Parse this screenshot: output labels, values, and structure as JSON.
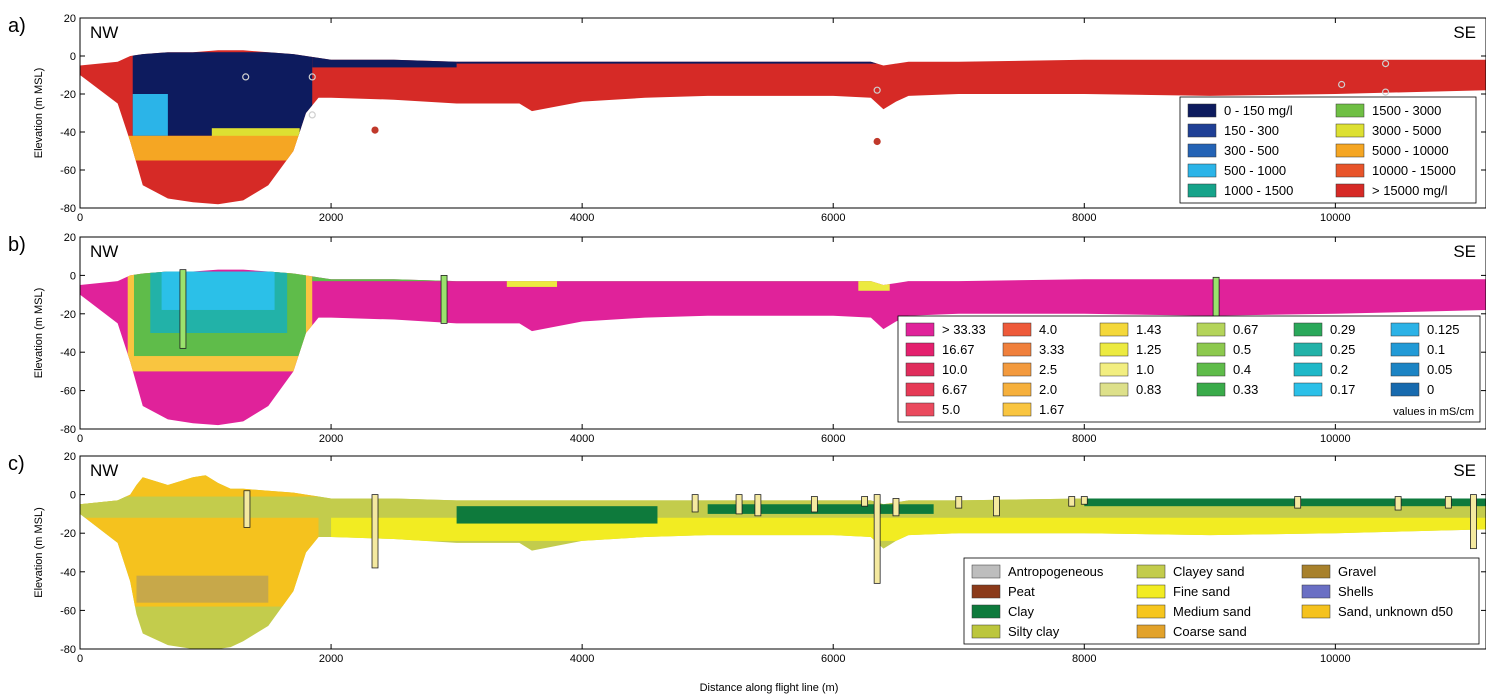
{
  "figure": {
    "xlabel": "Distance along flight line (m)"
  },
  "colors": {
    "zeroLine": "#ffffff",
    "borehole_fill": "#f4e9a0",
    "borehole_fill_b": "#9be26d"
  },
  "chart_data": [
    {
      "type": "heatmap",
      "panel_label": "a)",
      "left_label": "NW",
      "right_label": "SE",
      "ylabel": "Elevation (m MSL)",
      "xlim": [
        0,
        11200
      ],
      "ylim": [
        -80,
        20
      ],
      "x_ticks": [
        0,
        2000,
        4000,
        6000,
        8000,
        10000
      ],
      "y_ticks": [
        20,
        0,
        -20,
        -40,
        -60,
        -80
      ],
      "profile": {
        "x": [
          0,
          300,
          400,
          500,
          700,
          900,
          1100,
          1300,
          1500,
          1700,
          1800,
          1900,
          2000,
          2500,
          3000,
          3500,
          3600,
          4000,
          4500,
          5000,
          5500,
          6000,
          6300,
          6400,
          6500,
          6600,
          7000,
          8000,
          9000,
          10000,
          11200
        ],
        "top": [
          -5,
          -3,
          0,
          1,
          2,
          2,
          3,
          3,
          2,
          1,
          0,
          -1,
          -2,
          -2,
          -3,
          -3,
          -3,
          -3,
          -3,
          -3,
          -3,
          -3,
          -3,
          -5,
          -4,
          -3,
          -3,
          -2,
          -2,
          -2,
          -2
        ],
        "bottom": [
          -10,
          -25,
          -45,
          -68,
          -75,
          -77,
          -78,
          -76,
          -68,
          -50,
          -30,
          -22,
          -22,
          -23,
          -25,
          -25,
          -29,
          -24,
          -22,
          -21,
          -21,
          -21,
          -22,
          -28,
          -24,
          -21,
          -20,
          -20,
          -21,
          -20,
          -18
        ]
      },
      "legend": {
        "ncols": 2,
        "unit": "",
        "items": [
          {
            "label": "0 - 150 mg/l",
            "color": "#0d1b5e"
          },
          {
            "label": "150 - 300",
            "color": "#1f3f95"
          },
          {
            "label": "300 - 500",
            "color": "#2463b5"
          },
          {
            "label": "500 - 1000",
            "color": "#2bb4e8"
          },
          {
            "label": "1000 - 1500",
            "color": "#16a38a"
          },
          {
            "label": "1500 - 3000",
            "color": "#6fbf44"
          },
          {
            "label": "3000 - 5000",
            "color": "#dde032"
          },
          {
            "label": "5000 - 10000",
            "color": "#f5a623"
          },
          {
            "label": "10000 - 15000",
            "color": "#e8542a"
          },
          {
            "label": "> 15000 mg/l",
            "color": "#d62a26"
          }
        ]
      },
      "zones": [
        {
          "x0": 420,
          "x1": 1850,
          "ytop": 2,
          "ybot": -42,
          "color": "#0d1b5e"
        },
        {
          "x0": 1850,
          "x1": 3000,
          "ytop": 0,
          "ybot": -6,
          "color": "#0d1b5e"
        },
        {
          "x0": 3000,
          "x1": 6500,
          "ytop": 0,
          "ybot": -4,
          "color": "#0d1b5e"
        },
        {
          "x0": 1050,
          "x1": 1750,
          "ytop": -38,
          "ybot": -45,
          "color": "#dde032"
        },
        {
          "x0": 420,
          "x1": 700,
          "ytop": -20,
          "ybot": -42,
          "color": "#2bb4e8"
        },
        {
          "x0": 380,
          "x1": 1800,
          "ytop": -42,
          "ybot": -55,
          "color": "#f5a623"
        }
      ],
      "points": [
        {
          "x": 2350,
          "y": -39,
          "color": "#c0392b"
        },
        {
          "x": 6350,
          "y": -45,
          "color": "#c0392b"
        },
        {
          "x": 1320,
          "y": -11,
          "color": "#cfcfcf"
        },
        {
          "x": 1850,
          "y": -11,
          "color": "#cfcfcf"
        },
        {
          "x": 1850,
          "y": -31,
          "color": "#cfcfcf"
        },
        {
          "x": 6350,
          "y": -18,
          "color": "#cfcfcf"
        },
        {
          "x": 10050,
          "y": -15,
          "color": "#cfcfcf"
        },
        {
          "x": 10400,
          "y": -4,
          "color": "#cfcfcf"
        },
        {
          "x": 10400,
          "y": -19,
          "color": "#cfcfcf"
        }
      ],
      "boreholes": []
    },
    {
      "type": "heatmap",
      "panel_label": "b)",
      "left_label": "NW",
      "right_label": "SE",
      "ylabel": "Elevation (m MSL)",
      "xlim": [
        0,
        11200
      ],
      "ylim": [
        -80,
        20
      ],
      "x_ticks": [
        0,
        2000,
        4000,
        6000,
        8000,
        10000
      ],
      "y_ticks": [
        20,
        0,
        -20,
        -40,
        -60,
        -80
      ],
      "profile": {
        "x": [
          0,
          300,
          400,
          500,
          700,
          900,
          1100,
          1300,
          1500,
          1700,
          1800,
          1900,
          2000,
          2500,
          3000,
          3500,
          3600,
          4000,
          4500,
          5000,
          5500,
          6000,
          6300,
          6400,
          6500,
          6600,
          7000,
          8000,
          9000,
          10000,
          11200
        ],
        "top": [
          -5,
          -3,
          0,
          1,
          2,
          2,
          3,
          3,
          2,
          1,
          0,
          -1,
          -2,
          -2,
          -3,
          -3,
          -3,
          -3,
          -3,
          -3,
          -3,
          -3,
          -3,
          -5,
          -4,
          -3,
          -3,
          -2,
          -2,
          -2,
          -2
        ],
        "bottom": [
          -10,
          -25,
          -45,
          -68,
          -75,
          -77,
          -78,
          -76,
          -68,
          -50,
          -30,
          -22,
          -22,
          -23,
          -25,
          -25,
          -29,
          -24,
          -22,
          -21,
          -21,
          -21,
          -22,
          -28,
          -24,
          -21,
          -20,
          -20,
          -21,
          -20,
          -18
        ]
      },
      "legend": {
        "ncols": 6,
        "unit": "values in mS/cm",
        "items": [
          {
            "label": "> 33.33",
            "color": "#e0229a"
          },
          {
            "label": "16.67",
            "color": "#e4206e"
          },
          {
            "label": "10.0",
            "color": "#e02d5c"
          },
          {
            "label": "6.67",
            "color": "#e63a56"
          },
          {
            "label": "5.0",
            "color": "#ea4a5e"
          },
          {
            "label": "4.0",
            "color": "#ee5a3a"
          },
          {
            "label": "3.33",
            "color": "#f0803c"
          },
          {
            "label": "2.5",
            "color": "#f39a3e"
          },
          {
            "label": "2.0",
            "color": "#f6b03c"
          },
          {
            "label": "1.67",
            "color": "#f9c540"
          },
          {
            "label": "1.43",
            "color": "#f4d83a"
          },
          {
            "label": "1.25",
            "color": "#ecea40"
          },
          {
            "label": "1.0",
            "color": "#f2ee80"
          },
          {
            "label": "0.83",
            "color": "#dde08a"
          },
          {
            "label": "",
            "color": ""
          },
          {
            "label": "0.67",
            "color": "#b4d45a"
          },
          {
            "label": "0.5",
            "color": "#8dc94e"
          },
          {
            "label": "0.4",
            "color": "#5fbc4a"
          },
          {
            "label": "0.33",
            "color": "#3aab4a"
          },
          {
            "label": "",
            "color": ""
          },
          {
            "label": "0.29",
            "color": "#2aa85a"
          },
          {
            "label": "0.25",
            "color": "#22b2a8"
          },
          {
            "label": "0.2",
            "color": "#1fb8c8"
          },
          {
            "label": "0.17",
            "color": "#2bc0e8"
          },
          {
            "label": "",
            "color": ""
          },
          {
            "label": "0.125",
            "color": "#2cb2e6"
          },
          {
            "label": "0.1",
            "color": "#229ad6"
          },
          {
            "label": "0.05",
            "color": "#1c84c4"
          },
          {
            "label": "0",
            "color": "#176aae"
          },
          {
            "label": "",
            "color": ""
          }
        ]
      },
      "zones": [
        {
          "x0": 380,
          "x1": 1850,
          "ytop": 2,
          "ybot": -50,
          "color": "#f9c540"
        },
        {
          "x0": 430,
          "x1": 1800,
          "ytop": 2,
          "ybot": -42,
          "color": "#5fbc4a"
        },
        {
          "x0": 560,
          "x1": 1650,
          "ytop": 2,
          "ybot": -30,
          "color": "#22b2a8"
        },
        {
          "x0": 650,
          "x1": 1550,
          "ytop": 2,
          "ybot": -18,
          "color": "#2bc0e8"
        },
        {
          "x0": 1850,
          "x1": 6600,
          "ytop": 0,
          "ybot": -3,
          "color": "#5fbc4a"
        },
        {
          "x0": 3400,
          "x1": 3800,
          "ytop": 0,
          "ybot": -6,
          "color": "#ecea40"
        },
        {
          "x0": 6200,
          "x1": 6450,
          "ytop": 0,
          "ybot": -8,
          "color": "#ecea40"
        }
      ],
      "points": [],
      "boreholes": [
        {
          "x": 820,
          "ytop": 3,
          "ybot": -38
        },
        {
          "x": 2900,
          "ytop": 0,
          "ybot": -25
        },
        {
          "x": 9050,
          "ytop": -1,
          "ybot": -38
        }
      ]
    },
    {
      "type": "heatmap",
      "panel_label": "c)",
      "left_label": "NW",
      "right_label": "SE",
      "ylabel": "Elevation (m MSL)",
      "xlim": [
        0,
        11200
      ],
      "ylim": [
        -80,
        20
      ],
      "x_ticks": [
        0,
        2000,
        4000,
        6000,
        8000,
        10000
      ],
      "y_ticks": [
        20,
        0,
        -20,
        -40,
        -60,
        -80
      ],
      "profile": {
        "x": [
          0,
          300,
          400,
          450,
          500,
          700,
          900,
          1000,
          1100,
          1200,
          1300,
          1500,
          1700,
          1800,
          1900,
          2000,
          2500,
          3000,
          3500,
          3600,
          4000,
          4500,
          5000,
          5500,
          6000,
          6300,
          6400,
          6500,
          6600,
          7000,
          8000,
          9000,
          10000,
          11200
        ],
        "top": [
          -5,
          -3,
          0,
          5,
          9,
          5,
          9,
          10,
          6,
          3,
          3,
          2,
          1,
          0,
          -1,
          -2,
          -2,
          -3,
          -3,
          -3,
          -3,
          -3,
          -3,
          -3,
          -3,
          -3,
          -5,
          -4,
          -3,
          -3,
          -2,
          -2,
          -2,
          -2
        ],
        "bottom": [
          -10,
          -25,
          -45,
          -62,
          -72,
          -78,
          -80,
          -80,
          -80,
          -79,
          -76,
          -68,
          -50,
          -30,
          -22,
          -22,
          -23,
          -25,
          -25,
          -29,
          -24,
          -22,
          -21,
          -21,
          -21,
          -22,
          -28,
          -24,
          -21,
          -20,
          -20,
          -21,
          -20,
          -18
        ]
      },
      "legend": {
        "ncols": 3,
        "unit": "",
        "items": [
          {
            "label": "Antropogeneous",
            "color": "#bdbdbd"
          },
          {
            "label": "Peat",
            "color": "#8b3a1a"
          },
          {
            "label": "Clay",
            "color": "#0e7a3c"
          },
          {
            "label": "Silty clay",
            "color": "#bcc63c"
          },
          {
            "label": "Clayey sand",
            "color": "#c3cc4c"
          },
          {
            "label": "Fine sand",
            "color": "#f2ec22"
          },
          {
            "label": "Medium sand",
            "color": "#f6c61e"
          },
          {
            "label": "Coarse sand",
            "color": "#e2a22a"
          },
          {
            "label": "Gravel",
            "color": "#a8812c"
          },
          {
            "label": "Shells",
            "color": "#6a6fc4"
          },
          {
            "label": "Sand, unknown d50",
            "color": "#f5c21e"
          }
        ]
      },
      "zones": [
        {
          "x0": 0,
          "x1": 1900,
          "ytop": 10,
          "ybot": -58,
          "color": "#f5c21e"
        },
        {
          "x0": 450,
          "x1": 1500,
          "ytop": -42,
          "ybot": -56,
          "color": "#c7a84a"
        },
        {
          "x0": 0,
          "x1": 11200,
          "ytop": -1,
          "ybot": -12,
          "color": "#c3cc4c"
        },
        {
          "x0": 2000,
          "x1": 11200,
          "ytop": -12,
          "ybot": -24,
          "color": "#f2ec22"
        },
        {
          "x0": 3000,
          "x1": 4600,
          "ytop": -6,
          "ybot": -15,
          "color": "#0e7a3c"
        },
        {
          "x0": 5000,
          "x1": 6800,
          "ytop": -5,
          "ybot": -10,
          "color": "#0e7a3c"
        },
        {
          "x0": 8000,
          "x1": 11200,
          "ytop": -2,
          "ybot": -6,
          "color": "#0e7a3c"
        }
      ],
      "points": [],
      "boreholes": [
        {
          "x": 1330,
          "ytop": 2,
          "ybot": -17
        },
        {
          "x": 2350,
          "ytop": 0,
          "ybot": -38
        },
        {
          "x": 4900,
          "ytop": 0,
          "ybot": -9
        },
        {
          "x": 5250,
          "ytop": 0,
          "ybot": -10
        },
        {
          "x": 5400,
          "ytop": 0,
          "ybot": -11
        },
        {
          "x": 5850,
          "ytop": -1,
          "ybot": -9
        },
        {
          "x": 6250,
          "ytop": -1,
          "ybot": -6
        },
        {
          "x": 6350,
          "ytop": 0,
          "ybot": -46
        },
        {
          "x": 6500,
          "ytop": -2,
          "ybot": -11
        },
        {
          "x": 7000,
          "ytop": -1,
          "ybot": -7
        },
        {
          "x": 7300,
          "ytop": -1,
          "ybot": -11
        },
        {
          "x": 7900,
          "ytop": -1,
          "ybot": -6
        },
        {
          "x": 8000,
          "ytop": -1,
          "ybot": -5
        },
        {
          "x": 9700,
          "ytop": -1,
          "ybot": -7
        },
        {
          "x": 10500,
          "ytop": -1,
          "ybot": -8
        },
        {
          "x": 10900,
          "ytop": -1,
          "ybot": -7
        },
        {
          "x": 11100,
          "ytop": 0,
          "ybot": -28
        }
      ]
    }
  ]
}
